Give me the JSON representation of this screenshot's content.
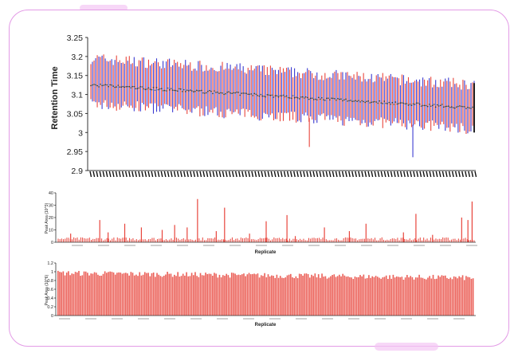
{
  "colors": {
    "frame": "#e39be6",
    "series_red": "#e8453c",
    "series_blue": "#3a3ad0",
    "bar_red": "#e8453c",
    "axis": "#333333"
  },
  "chart_data": [
    {
      "type": "scatter",
      "variant": "range-bars-with-mean",
      "title": "",
      "ylabel": "Retention Time",
      "xlabel": "",
      "ylim": [
        2.9,
        3.25
      ],
      "yticks": [
        "2.9",
        "2.95",
        "3",
        "3.05",
        "3.1",
        "3.15",
        "3.2",
        "3.25"
      ],
      "replicate_count": 240,
      "series": [
        {
          "name": "",
          "color_sequence": [
            "red",
            "blue"
          ],
          "mean_start": 3.125,
          "mean_end": 3.065,
          "upper_start": 3.195,
          "upper_end": 3.125,
          "lower_start": 3.075,
          "lower_end": 3.01
        }
      ],
      "outliers": [
        {
          "replicate_fraction": 0.57,
          "low": 2.962,
          "color": "red"
        },
        {
          "replicate_fraction": 0.84,
          "low": 2.935,
          "color": "blue"
        }
      ],
      "grid": false,
      "legend": "none"
    },
    {
      "type": "bar",
      "title": "",
      "ylabel": "Peak Area (10^3)",
      "xlabel": "Replicate",
      "ylim": [
        0,
        40
      ],
      "yticks": [
        "0",
        "10",
        "20",
        "30",
        "40"
      ],
      "replicate_count": 240,
      "baseline_value": 1.5,
      "spikes": [
        {
          "replicate_fraction": 0.03,
          "value": 7
        },
        {
          "replicate_fraction": 0.1,
          "value": 18
        },
        {
          "replicate_fraction": 0.12,
          "value": 8
        },
        {
          "replicate_fraction": 0.16,
          "value": 15
        },
        {
          "replicate_fraction": 0.2,
          "value": 12
        },
        {
          "replicate_fraction": 0.25,
          "value": 10
        },
        {
          "replicate_fraction": 0.28,
          "value": 14
        },
        {
          "replicate_fraction": 0.31,
          "value": 12
        },
        {
          "replicate_fraction": 0.335,
          "value": 35
        },
        {
          "replicate_fraction": 0.38,
          "value": 9
        },
        {
          "replicate_fraction": 0.4,
          "value": 28
        },
        {
          "replicate_fraction": 0.46,
          "value": 7
        },
        {
          "replicate_fraction": 0.5,
          "value": 17
        },
        {
          "replicate_fraction": 0.55,
          "value": 22
        },
        {
          "replicate_fraction": 0.57,
          "value": 5
        },
        {
          "replicate_fraction": 0.64,
          "value": 12
        },
        {
          "replicate_fraction": 0.7,
          "value": 9
        },
        {
          "replicate_fraction": 0.74,
          "value": 15
        },
        {
          "replicate_fraction": 0.83,
          "value": 8
        },
        {
          "replicate_fraction": 0.86,
          "value": 23
        },
        {
          "replicate_fraction": 0.9,
          "value": 6
        },
        {
          "replicate_fraction": 0.97,
          "value": 20
        },
        {
          "replicate_fraction": 0.985,
          "value": 18
        },
        {
          "replicate_fraction": 0.995,
          "value": 33
        }
      ],
      "grid": false,
      "legend": "none"
    },
    {
      "type": "bar",
      "title": "",
      "ylabel": "Peak Area (10^6)",
      "xlabel": "Replicate",
      "ylim": [
        0,
        1.2
      ],
      "yticks": [
        "0",
        "0.2",
        "0.4",
        "0.6",
        "0.8",
        "1",
        "1.2"
      ],
      "replicate_count": 240,
      "value_start": 0.97,
      "value_end": 0.86,
      "grid": false,
      "legend": "none"
    }
  ]
}
